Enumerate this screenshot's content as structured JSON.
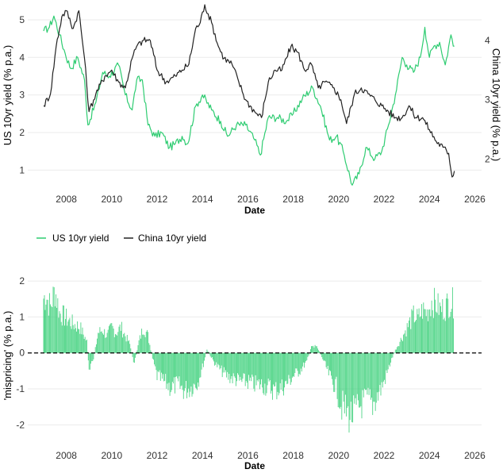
{
  "legend": {
    "items": [
      {
        "label": "US 10yr yield",
        "color": "#2ecc71"
      },
      {
        "label": "China 10yr yield",
        "color": "#222222"
      }
    ],
    "placement": "between-panels"
  },
  "chart_data": [
    {
      "type": "line",
      "xlabel": "Date",
      "ylabel": "US 10yr yield (% p.a.)",
      "ylabel_right": "China 10yr yield (% p.a.)",
      "xlim": [
        2006.3,
        2026.3
      ],
      "ylim": [
        0.5,
        5.4
      ],
      "ylim_right": [
        1.5,
        4.6
      ],
      "xticks": [
        2008,
        2010,
        2012,
        2014,
        2016,
        2018,
        2020,
        2022,
        2024,
        2026
      ],
      "xtick_labels": [
        "2008",
        "2010",
        "2012",
        "2014",
        "2016",
        "2018",
        "2020",
        "2022",
        "2024",
        "2026"
      ],
      "yticks": [
        1,
        2,
        3,
        4,
        5
      ],
      "ytick_labels": [
        "1",
        "2",
        "3",
        "4",
        "5"
      ],
      "yticks_right": [
        2,
        3,
        4
      ],
      "ytick_labels_right": [
        "2",
        "3",
        "4"
      ],
      "grid": "horizontal",
      "series": [
        {
          "name": "US 10yr yield",
          "axis": "left",
          "color": "#2ecc71",
          "x": [
            2007.0,
            2007.25,
            2007.45,
            2007.7,
            2007.95,
            2008.2,
            2008.5,
            2008.8,
            2008.95,
            2009.3,
            2009.6,
            2009.9,
            2010.3,
            2010.6,
            2010.9,
            2011.1,
            2011.35,
            2011.6,
            2011.9,
            2012.2,
            2012.55,
            2012.8,
            2013.1,
            2013.35,
            2013.7,
            2014.0,
            2014.4,
            2014.8,
            2015.1,
            2015.5,
            2015.9,
            2016.3,
            2016.55,
            2016.9,
            2017.3,
            2017.7,
            2018.0,
            2018.4,
            2018.85,
            2019.2,
            2019.6,
            2019.9,
            2020.2,
            2020.6,
            2020.9,
            2021.2,
            2021.6,
            2021.9,
            2022.2,
            2022.5,
            2022.8,
            2023.0,
            2023.3,
            2023.6,
            2023.8,
            2024.0,
            2024.2,
            2024.45,
            2024.7,
            2024.95,
            2025.1
          ],
          "y": [
            4.7,
            4.8,
            5.1,
            4.6,
            4.1,
            3.7,
            4.0,
            3.4,
            2.2,
            2.8,
            3.6,
            3.5,
            3.8,
            3.0,
            2.6,
            3.4,
            3.4,
            2.2,
            1.9,
            2.0,
            1.6,
            1.7,
            1.9,
            1.7,
            2.7,
            3.0,
            2.6,
            2.3,
            1.9,
            2.2,
            2.2,
            1.8,
            1.4,
            2.4,
            2.4,
            2.3,
            2.5,
            2.9,
            3.2,
            2.7,
            1.8,
            1.9,
            1.5,
            0.6,
            0.9,
            1.6,
            1.3,
            1.5,
            2.2,
            3.0,
            4.0,
            3.8,
            3.6,
            4.0,
            4.8,
            4.0,
            4.3,
            4.4,
            3.8,
            4.6,
            4.3
          ]
        },
        {
          "name": "China 10yr yield",
          "axis": "right",
          "color": "#222222",
          "x": [
            2007.0,
            2007.3,
            2007.55,
            2007.8,
            2008.0,
            2008.3,
            2008.55,
            2008.8,
            2009.0,
            2009.3,
            2009.7,
            2010.0,
            2010.3,
            2010.6,
            2010.9,
            2011.1,
            2011.4,
            2011.7,
            2012.0,
            2012.4,
            2012.8,
            2013.1,
            2013.4,
            2013.7,
            2013.9,
            2014.1,
            2014.4,
            2014.7,
            2014.95,
            2015.3,
            2015.6,
            2015.9,
            2016.3,
            2016.6,
            2016.9,
            2017.2,
            2017.5,
            2017.9,
            2018.2,
            2018.5,
            2018.8,
            2019.1,
            2019.4,
            2019.8,
            2020.1,
            2020.35,
            2020.7,
            2021.0,
            2021.3,
            2021.6,
            2021.9,
            2022.2,
            2022.5,
            2022.8,
            2023.1,
            2023.4,
            2023.7,
            2024.0,
            2024.3,
            2024.6,
            2024.85,
            2025.0,
            2025.1
          ],
          "y": [
            2.9,
            3.1,
            3.9,
            4.4,
            4.5,
            4.2,
            4.5,
            3.7,
            2.8,
            3.1,
            3.4,
            3.5,
            3.3,
            3.2,
            3.7,
            3.9,
            4.0,
            4.0,
            3.5,
            3.3,
            3.4,
            3.5,
            3.6,
            4.2,
            4.3,
            4.6,
            4.3,
            3.9,
            3.7,
            3.6,
            3.3,
            3.0,
            2.8,
            2.7,
            3.3,
            3.5,
            3.5,
            3.9,
            3.8,
            3.5,
            3.6,
            3.2,
            3.3,
            3.2,
            3.0,
            2.6,
            3.1,
            3.2,
            3.1,
            3.0,
            2.9,
            2.8,
            2.7,
            2.7,
            2.9,
            2.7,
            2.7,
            2.5,
            2.3,
            2.2,
            2.1,
            1.7,
            1.8
          ]
        }
      ]
    },
    {
      "type": "bar",
      "xlabel": "Date",
      "ylabel": "'mispricing' (% p.a.)",
      "xlim": [
        2006.3,
        2026.3
      ],
      "ylim": [
        -2.5,
        2.4
      ],
      "xticks": [
        2008,
        2010,
        2012,
        2014,
        2016,
        2018,
        2020,
        2022,
        2024,
        2026
      ],
      "xtick_labels": [
        "2008",
        "2010",
        "2012",
        "2014",
        "2016",
        "2018",
        "2020",
        "2022",
        "2024",
        "2026"
      ],
      "yticks": [
        -2,
        -1,
        0,
        1,
        2
      ],
      "ytick_labels": [
        "-2",
        "-1",
        "0",
        "1",
        "2"
      ],
      "grid": "horizontal",
      "zero_line": "dashed",
      "color": "#2ecc71",
      "series": [
        {
          "x": [
            2007.0,
            2007.1,
            2007.3,
            2007.5,
            2007.7,
            2008.0,
            2008.3,
            2008.6,
            2008.9,
            2009.0,
            2009.2,
            2009.4,
            2009.6,
            2009.8,
            2010.0,
            2010.2,
            2010.4,
            2010.6,
            2010.8,
            2011.0,
            2011.2,
            2011.4,
            2011.6,
            2011.8,
            2012.0,
            2012.3,
            2012.6,
            2012.9,
            2013.2,
            2013.5,
            2013.8,
            2014.0,
            2014.2,
            2014.5,
            2014.8,
            2015.1,
            2015.4,
            2015.7,
            2016.0,
            2016.3,
            2016.6,
            2016.9,
            2017.2,
            2017.5,
            2017.8,
            2018.0,
            2018.3,
            2018.6,
            2018.8,
            2019.0,
            2019.3,
            2019.6,
            2019.9,
            2020.1,
            2020.3,
            2020.5,
            2020.7,
            2020.9,
            2021.1,
            2021.3,
            2021.5,
            2021.7,
            2021.9,
            2022.1,
            2022.3,
            2022.5,
            2022.7,
            2022.9,
            2023.1,
            2023.3,
            2023.5,
            2023.7,
            2023.9,
            2024.1,
            2024.3,
            2024.5,
            2024.7,
            2024.9,
            2025.1
          ],
          "values": [
            1.9,
            2.0,
            1.6,
            2.2,
            1.4,
            1.2,
            1.0,
            0.9,
            0.4,
            -0.7,
            -0.2,
            0.7,
            0.8,
            0.6,
            0.9,
            0.7,
            0.9,
            0.6,
            0.3,
            -0.4,
            0.4,
            0.9,
            0.6,
            -0.2,
            -0.8,
            -1.0,
            -1.2,
            -1.1,
            -1.3,
            -1.2,
            -1.0,
            -0.5,
            0.1,
            -0.3,
            -0.6,
            -0.8,
            -0.9,
            -1.0,
            -1.0,
            -1.1,
            -1.1,
            -1.2,
            -1.3,
            -1.2,
            -1.0,
            -0.8,
            -0.6,
            -0.3,
            0.2,
            0.3,
            -0.2,
            -0.8,
            -1.2,
            -1.8,
            -2.0,
            -2.2,
            -2.1,
            -1.9,
            -1.7,
            -1.6,
            -1.8,
            -1.5,
            -1.2,
            -0.8,
            -0.3,
            0.1,
            0.4,
            0.7,
            1.0,
            1.3,
            1.2,
            1.5,
            1.4,
            1.8,
            1.7,
            1.5,
            1.6,
            1.8,
            1.7
          ]
        }
      ]
    }
  ]
}
